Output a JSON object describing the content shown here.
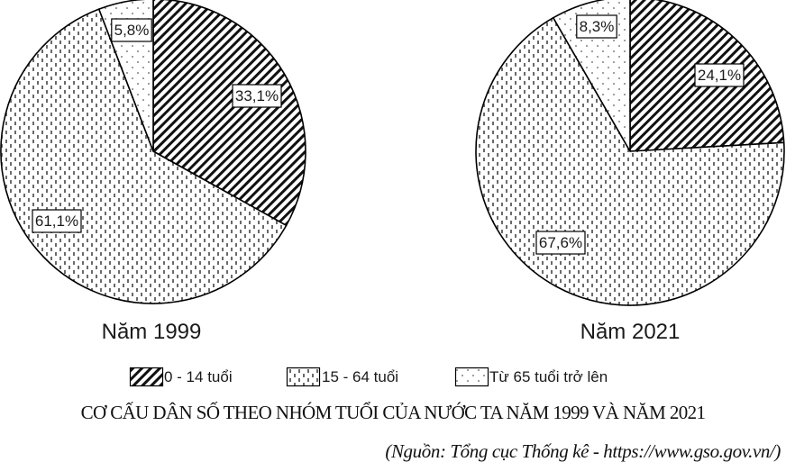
{
  "chart_data": {
    "type": "pie",
    "title": "CƠ CẤU DÂN SỐ THEO NHÓM TUỔI CỦA NƯỚC TA NĂM 1999 VÀ NĂM 2021",
    "source": "(Nguồn: Tổng cục Thống kê - https://www.gso.gov.vn/)",
    "legend": [
      {
        "name": "0 - 14 tuổi",
        "pattern": "diagonal-hatch"
      },
      {
        "name": "15 - 64 tuổi",
        "pattern": "dense-dots"
      },
      {
        "name": "Từ 65 tuổi trở lên",
        "pattern": "sparse-dots"
      }
    ],
    "legend_position": "bottom",
    "categories": [
      "0 - 14 tuổi",
      "15 - 64 tuổi",
      "Từ 65 tuổi trở lên"
    ],
    "pies": [
      {
        "label": "Năm 1999",
        "values": [
          33.1,
          61.1,
          5.8
        ],
        "display": [
          "33,1%",
          "61,1%",
          "5,8%"
        ]
      },
      {
        "label": "Năm 2021",
        "values": [
          24.1,
          67.6,
          8.3
        ],
        "display": [
          "24,1%",
          "67,6%",
          "8,3%"
        ]
      }
    ],
    "start_angle": "12 o'clock",
    "direction": "clockwise",
    "colors": {
      "stroke": "#000000",
      "background": "#ffffff"
    }
  }
}
